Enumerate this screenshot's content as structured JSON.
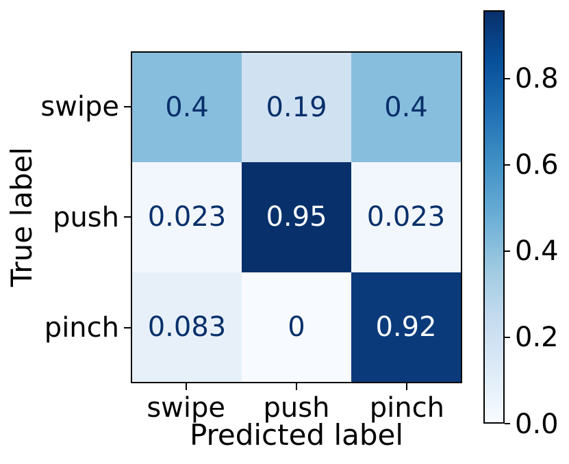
{
  "chart_data": {
    "type": "heatmap",
    "subtype": "confusion-matrix",
    "xlabel": "Predicted label",
    "ylabel": "True label",
    "x_categories": [
      "swipe",
      "push",
      "pinch"
    ],
    "y_categories": [
      "swipe",
      "push",
      "pinch"
    ],
    "rows": [
      [
        0.4,
        0.19,
        0.4
      ],
      [
        0.023,
        0.95,
        0.023
      ],
      [
        0.083,
        0,
        0.92
      ]
    ],
    "cells": [
      {
        "label": "0.4",
        "bg": "#88bedd",
        "fg": "#08306b"
      },
      {
        "label": "0.19",
        "bg": "#d0e1f2",
        "fg": "#08306b"
      },
      {
        "label": "0.4",
        "bg": "#88bedd",
        "fg": "#08306b"
      },
      {
        "label": "0.023",
        "bg": "#f2f7fd",
        "fg": "#08306b"
      },
      {
        "label": "0.95",
        "bg": "#08306b",
        "fg": "#f7fbff"
      },
      {
        "label": "0.023",
        "bg": "#f2f7fd",
        "fg": "#08306b"
      },
      {
        "label": "0.083",
        "bg": "#e7f0f9",
        "fg": "#08306b"
      },
      {
        "label": "0",
        "bg": "#f7fbff",
        "fg": "#08306b"
      },
      {
        "label": "0.92",
        "bg": "#0a3a7a",
        "fg": "#f7fbff"
      }
    ],
    "colorbar": {
      "cmap": "Blues",
      "vmin": 0.0,
      "vmax": 0.95,
      "tick_labels": [
        "0.0",
        "0.2",
        "0.4",
        "0.6",
        "0.8"
      ],
      "gradient_colors": [
        "#f7fbff",
        "#deebf7",
        "#c6dbef",
        "#9ecae1",
        "#6baed6",
        "#4292c6",
        "#2171b5",
        "#08519c",
        "#08306b"
      ]
    },
    "grid": false,
    "background": "#ffffff"
  }
}
